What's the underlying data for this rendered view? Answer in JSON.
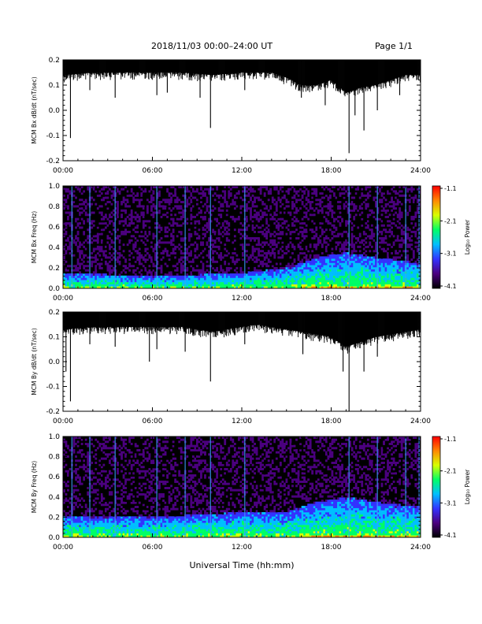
{
  "header": {
    "title": "2018/11/03  00:00–24:00 UT",
    "page": "Page 1/1"
  },
  "x_axis_label": "Universal Time (hh:mm)",
  "colorbar": {
    "label": "Log₁₀ Power",
    "ticks": [
      "-1.1",
      "-2.1",
      "-3.1",
      "-4.1"
    ],
    "range": [
      -4.1,
      -1.1
    ],
    "colors": [
      "#000000",
      "#4b007f",
      "#3333ff",
      "#00bfff",
      "#00ff66",
      "#d8ff00",
      "#ff8800",
      "#ff0000"
    ]
  },
  "chart_data": [
    {
      "type": "line",
      "ylabel": "MCM Bx dB/dt (nT/sec)",
      "xlim": [
        0,
        24
      ],
      "ylim": [
        -0.2,
        0.2
      ],
      "xticks": [
        "00:00",
        "06:00",
        "12:00",
        "18:00",
        "24:00"
      ],
      "yticks": [
        "0.2",
        "0.1",
        "0.0",
        "-0.1",
        "-0.2"
      ],
      "series": [
        {
          "baseline_hours": [
            0,
            2,
            4,
            6,
            8,
            10,
            12,
            13,
            14,
            15,
            16,
            17,
            18,
            19,
            20,
            21,
            22,
            23,
            24
          ],
          "baseline_upper": [
            0.2,
            0.2,
            0.2,
            0.2,
            0.2,
            0.2,
            0.2,
            0.2,
            0.2,
            0.2,
            0.2,
            0.2,
            0.2,
            0.2,
            0.2,
            0.2,
            0.2,
            0.2,
            0.2
          ],
          "baseline_lower": [
            0.14,
            0.15,
            0.15,
            0.15,
            0.15,
            0.14,
            0.15,
            0.15,
            0.15,
            0.13,
            0.1,
            0.1,
            0.12,
            0.07,
            0.09,
            0.1,
            0.12,
            0.14,
            0.14
          ],
          "spikes": [
            {
              "t": 0.5,
              "min": -0.11
            },
            {
              "t": 1.8,
              "min": 0.08
            },
            {
              "t": 3.5,
              "min": 0.05
            },
            {
              "t": 6.3,
              "min": 0.06
            },
            {
              "t": 7.0,
              "min": 0.07
            },
            {
              "t": 9.2,
              "min": 0.05
            },
            {
              "t": 9.9,
              "min": -0.07
            },
            {
              "t": 12.2,
              "min": 0.08
            },
            {
              "t": 16.0,
              "min": 0.05
            },
            {
              "t": 17.6,
              "min": 0.02
            },
            {
              "t": 19.2,
              "min": -0.17
            },
            {
              "t": 19.6,
              "min": -0.02
            },
            {
              "t": 20.2,
              "min": -0.08
            },
            {
              "t": 21.1,
              "min": 0.0
            },
            {
              "t": 22.6,
              "min": 0.06
            }
          ]
        }
      ]
    },
    {
      "type": "heatmap",
      "ylabel": "MCM Bx Freq (Hz)",
      "xlim": [
        0,
        24
      ],
      "ylim": [
        0.0,
        1.0
      ],
      "xticks": [
        "00:00",
        "06:00",
        "12:00",
        "18:00",
        "24:00"
      ],
      "yticks": [
        "1.0",
        "0.8",
        "0.6",
        "0.4",
        "0.2",
        "0.0"
      ],
      "vertical_streak_hours": [
        0.6,
        1.8,
        3.5,
        6.3,
        8.2,
        9.9,
        12.2,
        19.2,
        21.1,
        23.0,
        23.9
      ],
      "activity_profile": {
        "hours": [
          0,
          6,
          12,
          15,
          17,
          19,
          21,
          24
        ],
        "top_freq_hz": [
          0.15,
          0.12,
          0.15,
          0.2,
          0.3,
          0.35,
          0.3,
          0.25
        ]
      }
    },
    {
      "type": "line",
      "ylabel": "MCM By dB/dt (nT/sec)",
      "xlim": [
        0,
        24
      ],
      "ylim": [
        -0.2,
        0.2
      ],
      "xticks": [
        "00:00",
        "06:00",
        "12:00",
        "18:00",
        "24:00"
      ],
      "yticks": [
        "0.2",
        "0.1",
        "0.0",
        "-0.1",
        "-0.2"
      ],
      "series": [
        {
          "baseline_hours": [
            0,
            2,
            4,
            6,
            8,
            10,
            12,
            13,
            14,
            15,
            16,
            17,
            18,
            19,
            20,
            21,
            22,
            23,
            24
          ],
          "baseline_upper": [
            0.2,
            0.2,
            0.2,
            0.2,
            0.2,
            0.2,
            0.2,
            0.2,
            0.2,
            0.2,
            0.2,
            0.2,
            0.2,
            0.2,
            0.2,
            0.2,
            0.2,
            0.2,
            0.2
          ],
          "baseline_lower": [
            0.13,
            0.14,
            0.14,
            0.14,
            0.14,
            0.12,
            0.14,
            0.15,
            0.14,
            0.13,
            0.12,
            0.11,
            0.1,
            0.06,
            0.08,
            0.1,
            0.11,
            0.12,
            0.13
          ],
          "spikes": [
            {
              "t": 0.2,
              "min": -0.04
            },
            {
              "t": 0.5,
              "min": -0.16
            },
            {
              "t": 1.8,
              "min": 0.07
            },
            {
              "t": 3.5,
              "min": 0.06
            },
            {
              "t": 5.8,
              "min": 0.0
            },
            {
              "t": 6.3,
              "min": 0.05
            },
            {
              "t": 8.2,
              "min": 0.04
            },
            {
              "t": 9.9,
              "min": -0.08
            },
            {
              "t": 12.2,
              "min": 0.07
            },
            {
              "t": 16.1,
              "min": 0.03
            },
            {
              "t": 18.8,
              "min": -0.04
            },
            {
              "t": 19.2,
              "min": -0.2
            },
            {
              "t": 20.2,
              "min": -0.04
            },
            {
              "t": 21.1,
              "min": 0.02
            }
          ]
        }
      ]
    },
    {
      "type": "heatmap",
      "ylabel": "MCM By Freq (Hz)",
      "xlim": [
        0,
        24
      ],
      "ylim": [
        0.0,
        1.0
      ],
      "xticks": [
        "00:00",
        "06:00",
        "12:00",
        "18:00",
        "24:00"
      ],
      "yticks": [
        "1.0",
        "0.8",
        "0.6",
        "0.4",
        "0.2",
        "0.0"
      ],
      "vertical_streak_hours": [
        0.6,
        1.8,
        3.5,
        6.3,
        8.2,
        9.9,
        12.2,
        19.2,
        21.1,
        23.0,
        23.9
      ],
      "activity_profile": {
        "hours": [
          0,
          6,
          12,
          15,
          17,
          19,
          21,
          24
        ],
        "top_freq_hz": [
          0.2,
          0.2,
          0.25,
          0.25,
          0.35,
          0.4,
          0.35,
          0.3
        ]
      }
    }
  ]
}
